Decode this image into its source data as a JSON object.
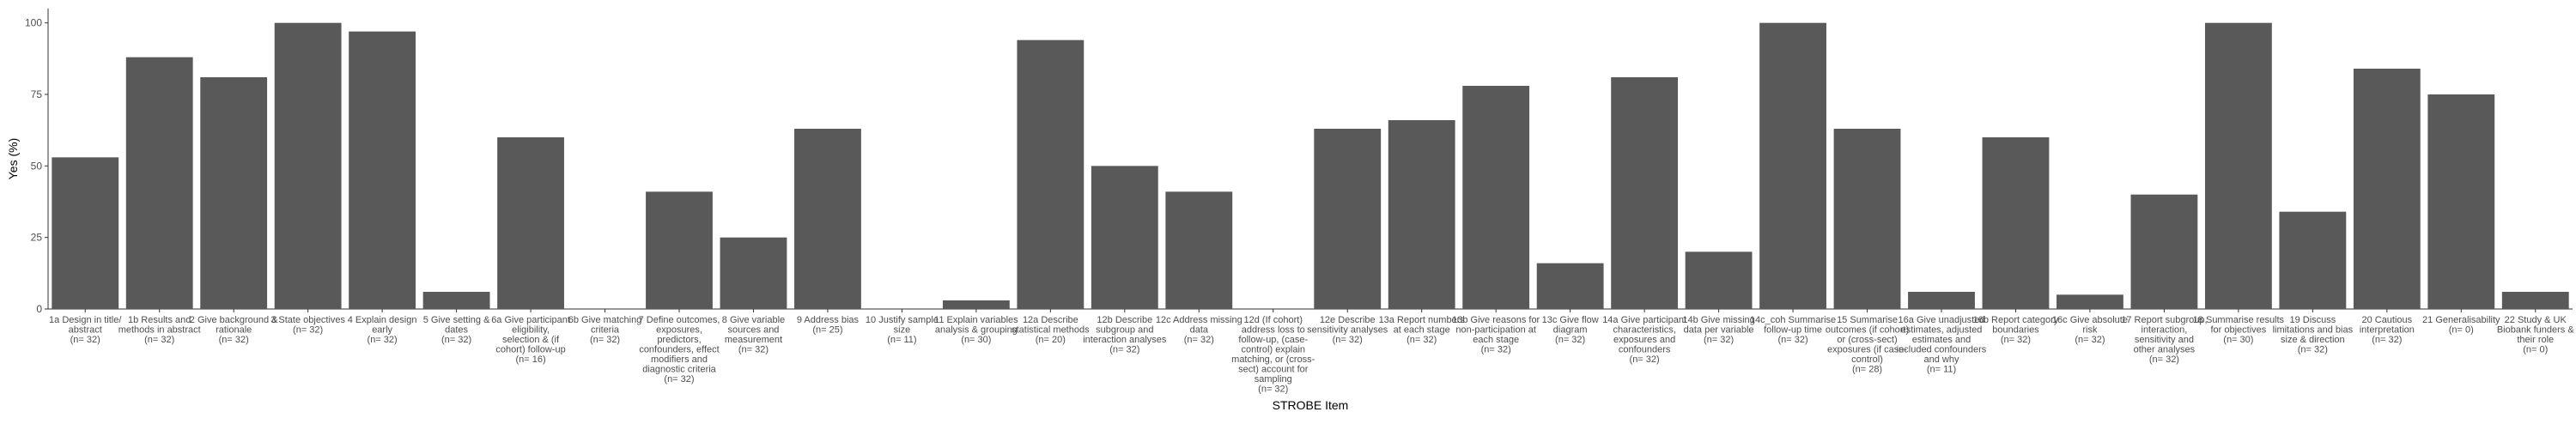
{
  "chart_data": {
    "type": "bar",
    "xlabel": "STROBE Item",
    "ylabel": "Yes (%)",
    "ylim": [
      0,
      105
    ],
    "yticks": [
      0,
      25,
      50,
      75,
      100
    ],
    "grid": false,
    "bar_color": "#595959",
    "categories": [
      [
        "1a Design in title/",
        "abstract",
        "(n= 32)"
      ],
      [
        "1b Results and",
        "methods in abstract",
        "(n= 32)"
      ],
      [
        "2 Give background &",
        "rationale",
        "(n= 32)"
      ],
      [
        "3 State objectives",
        "(n= 32)"
      ],
      [
        "4 Explain design",
        "early",
        "(n= 32)"
      ],
      [
        "5 Give setting &",
        "dates",
        "(n= 32)"
      ],
      [
        "6a Give participant",
        "eligibility,",
        "selection & (if",
        "cohort) follow-up",
        "(n= 16)"
      ],
      [
        "6b Give matching",
        "criteria",
        "(n= 32)"
      ],
      [
        "7 Define outcomes,",
        "exposures,",
        "predictors,",
        "confounders, effect",
        "modifiers and",
        "diagnostic criteria",
        "(n= 32)"
      ],
      [
        "8 Give variable",
        "sources and",
        "measurement",
        "(n= 32)"
      ],
      [
        "9 Address bias",
        "(n= 25)"
      ],
      [
        "10 Justify sample",
        "size",
        "(n= 11)"
      ],
      [
        "11 Explain variables",
        "analysis & grouping",
        "(n= 30)"
      ],
      [
        "12a Describe",
        "statistical methods",
        "(n= 20)"
      ],
      [
        "12b Describe",
        "subgroup and",
        "interaction analyses",
        "(n= 32)"
      ],
      [
        "12c Address missing",
        "data",
        "(n= 32)"
      ],
      [
        "12d (If cohort)",
        "address loss to",
        "follow-up, (case-",
        "control) explain",
        "matching, or (cross-",
        "sect) account for",
        "sampling",
        "(n= 32)"
      ],
      [
        "12e Describe",
        "sensitivity analyses",
        "(n= 32)"
      ],
      [
        "13a Report numbers",
        "at each stage",
        "(n= 32)"
      ],
      [
        "13b Give reasons for",
        "non-participation at",
        "each stage",
        "(n= 32)"
      ],
      [
        "13c Give flow",
        "diagram",
        "(n= 32)"
      ],
      [
        "14a Give participant",
        "characteristics,",
        "exposures and",
        "confounders",
        "(n= 32)"
      ],
      [
        "14b Give missing",
        "data per variable",
        "(n= 32)"
      ],
      [
        "14c_coh Summarise",
        "follow-up time",
        "(n= 32)"
      ],
      [
        "15 Summarise",
        "outcomes (if cohort)",
        "or (cross-sect)",
        "exposures (if case-",
        "control)",
        "(n= 28)"
      ],
      [
        "16a Give unadjusted",
        "estimates, adjusted",
        "estimates and",
        "included confounders",
        "and why",
        "(n= 11)"
      ],
      [
        "16b Report category",
        "boundaries",
        "(n= 32)"
      ],
      [
        "16c Give absolute",
        "risk",
        "(n= 32)"
      ],
      [
        "17 Report subgroup,",
        "interaction,",
        "sensitivity and",
        "other analyses",
        "(n= 32)"
      ],
      [
        "18 Summarise results",
        "for objectives",
        "(n= 30)"
      ],
      [
        "19 Discuss",
        "limitations and bias",
        "size & direction",
        "(n= 32)"
      ],
      [
        "20 Cautious",
        "interpretation",
        "(n= 32)"
      ],
      [
        "21 Generalisability",
        "(n= 0)"
      ],
      [
        "22 Study & UK",
        "Biobank funders &",
        "their role",
        "(n= 0)"
      ]
    ],
    "values": [
      53,
      88,
      81,
      100,
      97,
      6,
      60,
      0,
      41,
      25,
      63,
      0,
      3,
      94,
      50,
      41,
      0,
      63,
      66,
      78,
      16,
      81,
      20,
      100,
      63,
      6,
      60,
      5,
      40,
      100,
      34,
      84,
      75,
      6
    ]
  }
}
